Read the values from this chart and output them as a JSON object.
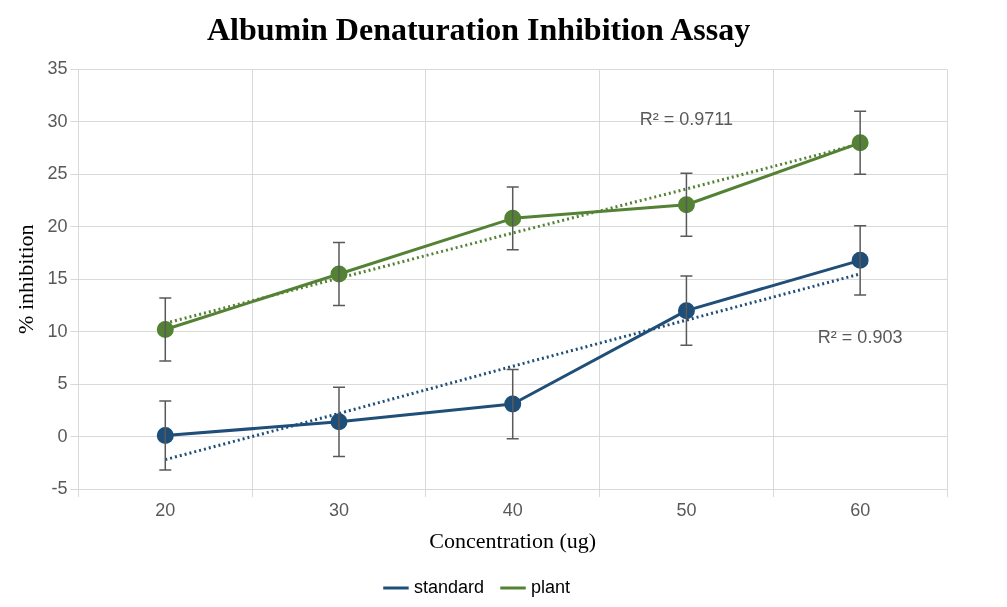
{
  "chart_data": {
    "type": "line",
    "title": "Albumin Denaturation Inhibition Assay",
    "xlabel": "Concentration (ug)",
    "ylabel": "% inhibition",
    "categories": [
      "20",
      "30",
      "40",
      "50",
      "60"
    ],
    "series": [
      {
        "name": "standard",
        "color": "#1f4e79",
        "values": [
          0.1,
          1.4,
          3.1,
          12.0,
          16.8
        ],
        "errors": [
          3.3,
          3.3,
          3.3,
          3.3,
          3.3
        ]
      },
      {
        "name": "plant",
        "color": "#548235",
        "values": [
          10.2,
          15.5,
          20.8,
          22.1,
          28.0
        ],
        "errors": [
          3,
          3,
          3,
          3,
          3
        ]
      },
      {
        "type": "line",
        "color": "#1f4e79",
        "line_style": "dotted",
        "marker": "none",
        "values": [
          -2.2,
          2.2,
          6.7,
          11.1,
          15.5
        ]
      },
      {
        "type": "line",
        "color": "#548235",
        "line_style": "dotted",
        "marker": "none",
        "values": [
          10.8,
          15.1,
          19.4,
          23.6,
          27.9
        ]
      }
    ],
    "annotations": [
      "R² = 0.9711",
      "R² = 0.903"
    ],
    "ylim": [
      -5,
      35
    ],
    "yticks": [
      -5,
      0,
      5,
      10,
      15,
      20,
      25,
      30,
      35
    ],
    "grid": true,
    "legend": "bottom",
    "marker": "circle",
    "line_style": "solid"
  }
}
